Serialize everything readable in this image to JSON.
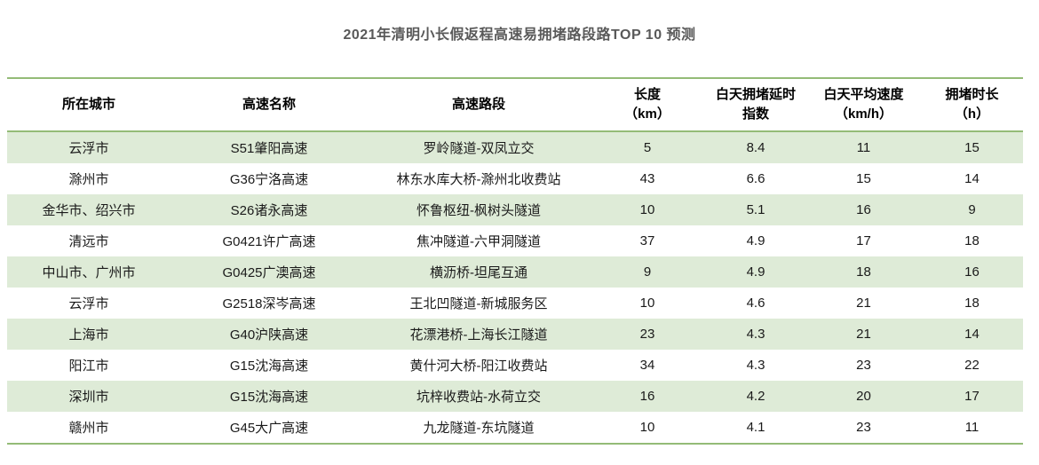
{
  "title": "2021年清明小长假返程高速易拥堵路段路TOP 10 预测",
  "colors": {
    "border_green": "#94bb77",
    "row_green": "#deebd7",
    "title_gray": "#595959",
    "text_black": "#1a1a1a"
  },
  "chart_data": {
    "type": "table",
    "title": "2021年清明小长假返程高速易拥堵路段路TOP 10 预测",
    "columns": [
      {
        "label": "所在城市",
        "line1": "所在城市",
        "line2": ""
      },
      {
        "label": "高速名称",
        "line1": "高速名称",
        "line2": ""
      },
      {
        "label": "高速路段",
        "line1": "高速路段",
        "line2": ""
      },
      {
        "label": "长度（km）",
        "line1": "长度",
        "line2": "（km）"
      },
      {
        "label": "白天拥堵延时指数",
        "line1": "白天拥堵延时",
        "line2": "指数"
      },
      {
        "label": "白天平均速度（km/h）",
        "line1": "白天平均速度",
        "line2": "（km/h）"
      },
      {
        "label": "拥堵时长（h）",
        "line1": "拥堵时长",
        "line2": "（h）"
      }
    ],
    "rows": [
      [
        "云浮市",
        "S51肇阳高速",
        "罗岭隧道-双凤立交",
        "5",
        "8.4",
        "11",
        "15"
      ],
      [
        "滁州市",
        "G36宁洛高速",
        "林东水库大桥-滁州北收费站",
        "43",
        "6.6",
        "15",
        "14"
      ],
      [
        "金华市、绍兴市",
        "S26诸永高速",
        "怀鲁枢纽-枫树头隧道",
        "10",
        "5.1",
        "16",
        "9"
      ],
      [
        "清远市",
        "G0421许广高速",
        "焦冲隧道-六甲洞隧道",
        "37",
        "4.9",
        "17",
        "18"
      ],
      [
        "中山市、广州市",
        "G0425广澳高速",
        "横沥桥-坦尾互通",
        "9",
        "4.9",
        "18",
        "16"
      ],
      [
        "云浮市",
        "G2518深岑高速",
        "王北凹隧道-新城服务区",
        "10",
        "4.6",
        "21",
        "18"
      ],
      [
        "上海市",
        "G40沪陕高速",
        "花漂港桥-上海长江隧道",
        "23",
        "4.3",
        "21",
        "14"
      ],
      [
        "阳江市",
        "G15沈海高速",
        "黄什河大桥-阳江收费站",
        "34",
        "4.3",
        "23",
        "22"
      ],
      [
        "深圳市",
        "G15沈海高速",
        "坑梓收费站-水荷立交",
        "16",
        "4.2",
        "20",
        "17"
      ],
      [
        "赣州市",
        "G45大广高速",
        "九龙隧道-东坑隧道",
        "10",
        "4.1",
        "23",
        "11"
      ]
    ]
  }
}
